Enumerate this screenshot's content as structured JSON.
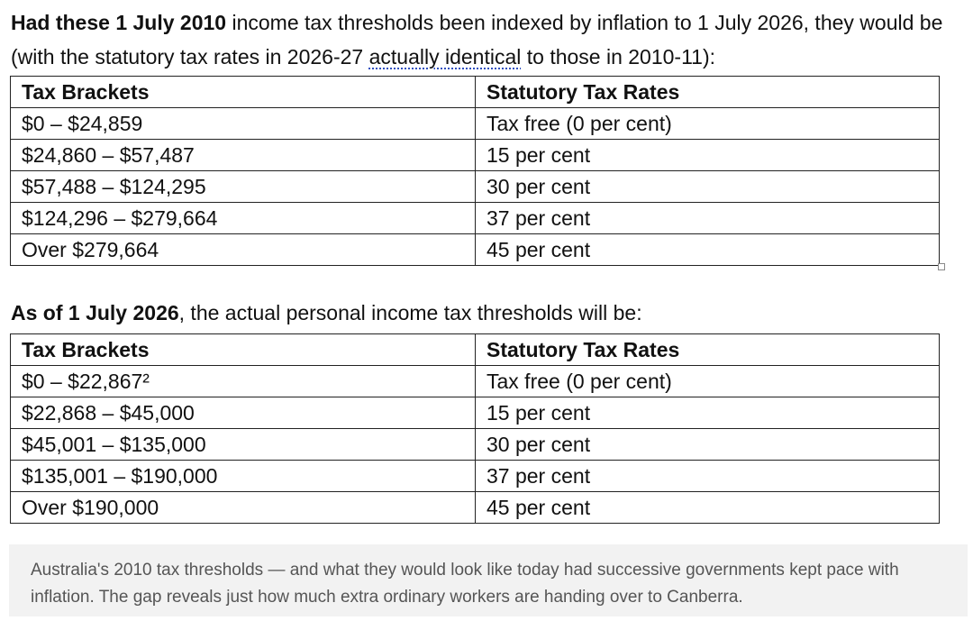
{
  "intro": {
    "bold_part": "Had these 1 July 2010",
    "text_part": " income tax thresholds been indexed by inflation to 1 July 2026, they would be (with the statutory tax rates in 2026-27 ",
    "underlined_part": "actually identical",
    "end_part": " to those in 2010-11):"
  },
  "table_indexed": {
    "headers": [
      "Tax Brackets",
      "Statutory Tax Rates"
    ],
    "rows": [
      {
        "bracket": "$0 – $24,859",
        "rate": "Tax free (0 per cent)"
      },
      {
        "bracket": "$24,860 – $57,487",
        "rate": "15 per cent"
      },
      {
        "bracket": "$57,488 – $124,295",
        "rate": "30 per cent"
      },
      {
        "bracket": "$124,296 – $279,664",
        "rate": "37 per cent"
      },
      {
        "bracket": "Over $279,664",
        "rate": "45 per cent"
      }
    ]
  },
  "second_heading": {
    "bold_part": "As of 1 July 2026",
    "text_part": ", the actual personal income tax thresholds will be:"
  },
  "table_actual": {
    "headers": [
      "Tax Brackets",
      "Statutory Tax Rates"
    ],
    "rows": [
      {
        "bracket": "$0 – $22,867²",
        "rate": "Tax free (0 per cent)"
      },
      {
        "bracket": "$22,868 – $45,000",
        "rate": "15 per cent"
      },
      {
        "bracket": "$45,001 – $135,000",
        "rate": "30 per cent"
      },
      {
        "bracket": "$135,001 – $190,000",
        "rate": "37 per cent"
      },
      {
        "bracket": "Over $190,000",
        "rate": "45 per cent"
      }
    ]
  },
  "caption": "Australia's 2010 tax thresholds — and what they would look like today had successive governments kept pace with inflation. The gap reveals just how much extra ordinary workers are handing over to Canberra."
}
